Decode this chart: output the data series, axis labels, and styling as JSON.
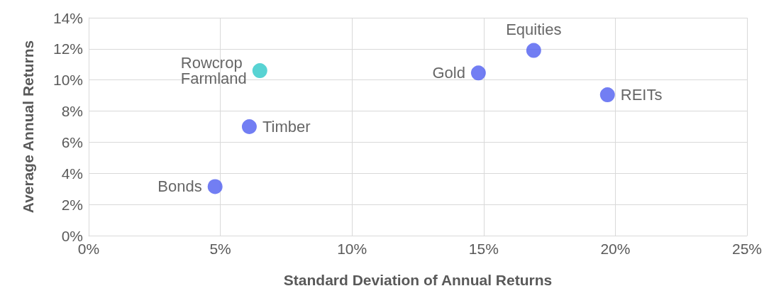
{
  "chart_data": {
    "type": "scatter",
    "xlabel": "Standard Deviation of Annual Returns",
    "ylabel": "Average Annual Returns",
    "series": [
      {
        "name": "Bonds",
        "color": "#4f5ef0",
        "x": [
          4.8
        ],
        "values": [
          3.15
        ]
      },
      {
        "name": "Timber",
        "color": "#4f5ef0",
        "x": [
          6.1
        ],
        "values": [
          7.0
        ]
      },
      {
        "name": "Rowcrop Farmland",
        "color": "#2ec8c8",
        "x": [
          6.5
        ],
        "values": [
          10.6
        ]
      },
      {
        "name": "Gold",
        "color": "#4f5ef0",
        "x": [
          14.8
        ],
        "values": [
          10.45
        ]
      },
      {
        "name": "Equities",
        "color": "#4f5ef0",
        "x": [
          16.9
        ],
        "values": [
          11.9
        ]
      },
      {
        "name": "REITs",
        "color": "#4f5ef0",
        "x": [
          19.7
        ],
        "values": [
          9.05
        ]
      }
    ],
    "xlim": [
      0,
      25
    ],
    "xticks": [
      {
        "value": 0,
        "label": "0%"
      },
      {
        "value": 5,
        "label": "5%"
      },
      {
        "value": 10,
        "label": "10%"
      },
      {
        "value": 15,
        "label": "15%"
      },
      {
        "value": 20,
        "label": "20%"
      },
      {
        "value": 25,
        "label": "25%"
      }
    ],
    "ylim": [
      0,
      14
    ],
    "yticks": [
      {
        "value": 0,
        "label": "0%"
      },
      {
        "value": 2,
        "label": "2%"
      },
      {
        "value": 4,
        "label": "4%"
      },
      {
        "value": 6,
        "label": "6%"
      },
      {
        "value": 8,
        "label": "8%"
      },
      {
        "value": 10,
        "label": "10%"
      },
      {
        "value": 12,
        "label": "12%"
      },
      {
        "value": 14,
        "label": "14%"
      }
    ],
    "grid": true,
    "marker": "circle",
    "legend": false
  }
}
